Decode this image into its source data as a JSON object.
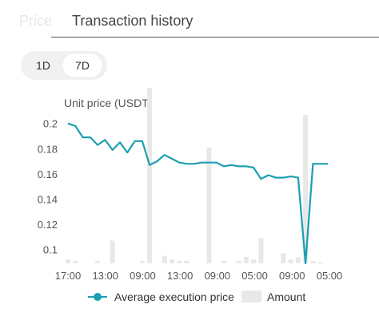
{
  "tabs": {
    "price_label": "Price",
    "history_label": "Transaction history"
  },
  "range": {
    "options": [
      "1D",
      "7D"
    ],
    "selected": "7D"
  },
  "colors": {
    "line": "#1a9fb0",
    "amount_bar": "#e8e8e8",
    "axis_text": "#555555"
  },
  "chart_data": {
    "type": "line",
    "ylabel": "Unit price (USDT)",
    "yticks": [
      0.2,
      0.18,
      0.16,
      0.14,
      0.12,
      0.1
    ],
    "ylim": [
      0.089,
      0.203
    ],
    "xticks": [
      "17:00",
      "13:00",
      "09:00",
      "13:00",
      "09:00",
      "05:00",
      "09:00",
      "05:00"
    ],
    "grid": false,
    "legend": [
      "Average execution price",
      "Amount"
    ],
    "legend_position": "bottom",
    "series": [
      {
        "name": "Average execution price",
        "kind": "line",
        "values": [
          0.2,
          0.198,
          0.189,
          0.189,
          0.183,
          0.187,
          0.179,
          0.185,
          0.177,
          0.186,
          0.186,
          0.167,
          0.17,
          0.175,
          0.172,
          0.169,
          0.168,
          0.168,
          0.169,
          0.169,
          0.169,
          0.166,
          0.167,
          0.166,
          0.166,
          0.165,
          0.156,
          0.159,
          0.157,
          0.157,
          0.158,
          0.157,
          0.089,
          0.168,
          0.168,
          0.168
        ]
      },
      {
        "name": "Amount",
        "kind": "bar",
        "values": [
          0.003,
          0.002,
          0,
          0,
          0.002,
          0,
          0.018,
          0,
          0,
          0,
          0.002,
          0.193,
          0,
          0.006,
          0.003,
          0.002,
          0.002,
          0,
          0,
          0.092,
          0,
          0.002,
          0,
          0.002,
          0.005,
          0.003,
          0.02,
          0,
          0,
          0.008,
          0.003,
          0.005,
          0.118,
          0.002,
          0.001,
          0
        ]
      }
    ]
  }
}
